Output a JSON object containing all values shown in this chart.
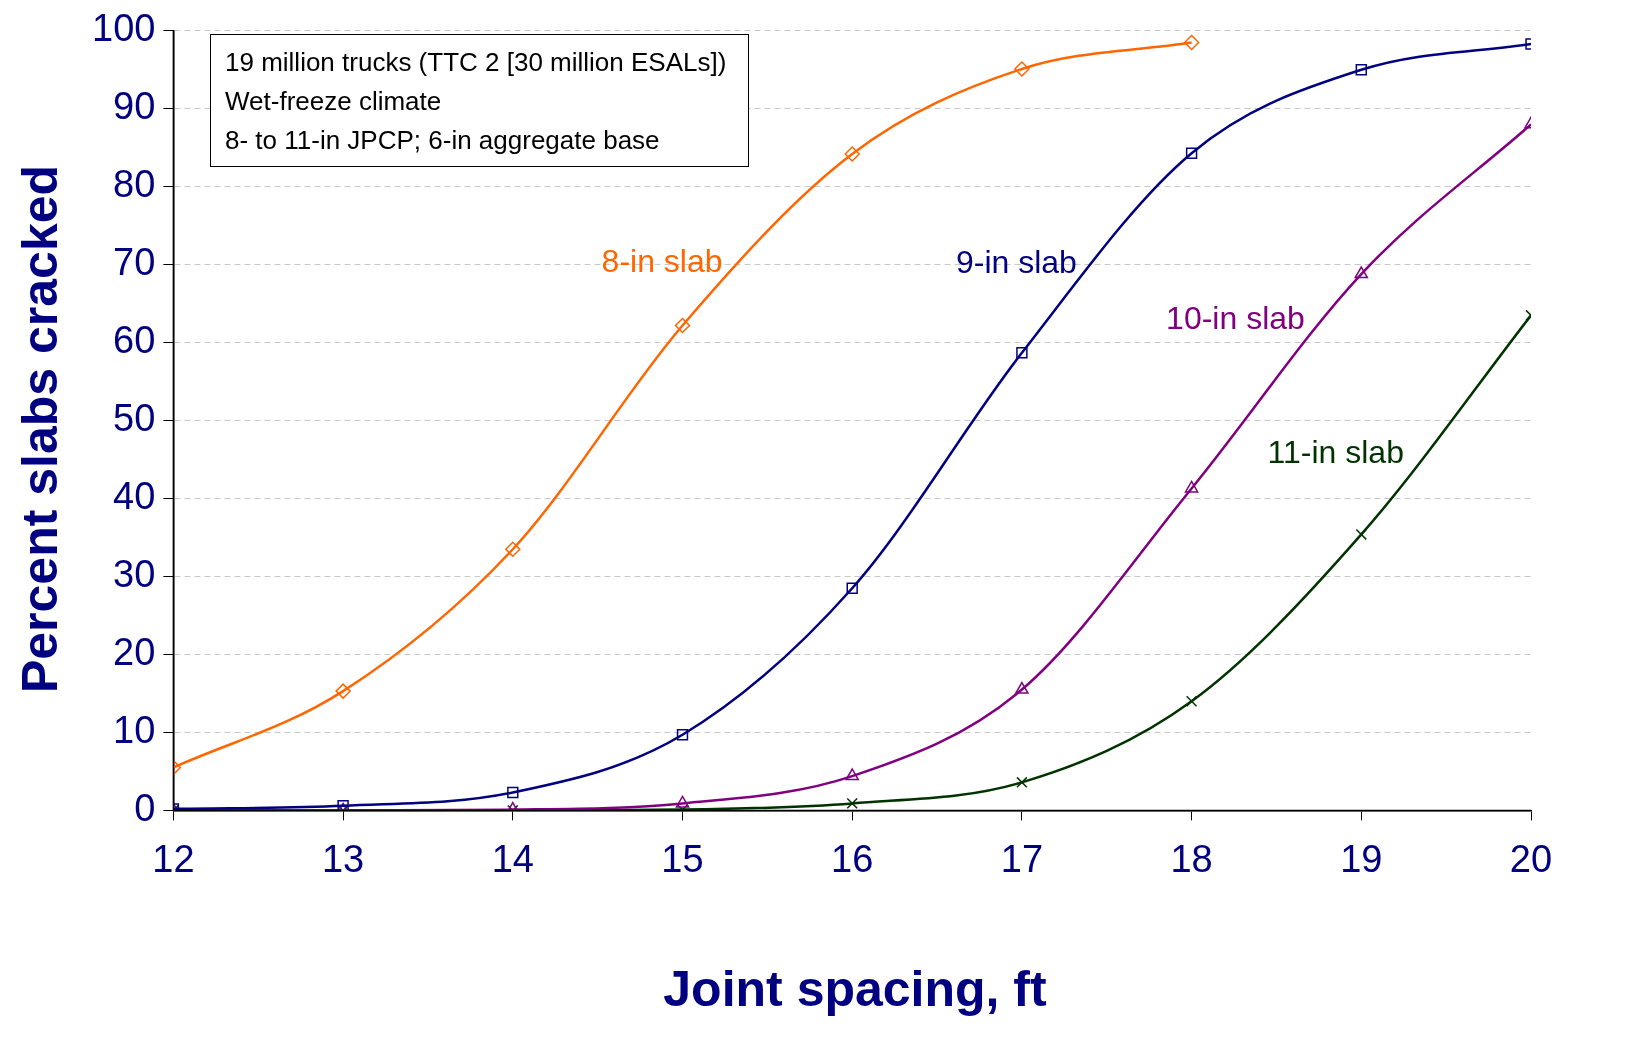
{
  "chart_data": {
    "type": "line",
    "xlabel": "Joint spacing, ft",
    "ylabel": "Percent slabs cracked",
    "x": [
      12,
      13,
      14,
      15,
      16,
      17,
      18,
      19,
      20
    ],
    "xlim": [
      12,
      20
    ],
    "xticks": [
      12,
      13,
      14,
      15,
      16,
      17,
      18,
      19,
      20
    ],
    "ylim": [
      0,
      100
    ],
    "yticks": [
      0,
      10,
      20,
      30,
      40,
      50,
      60,
      70,
      80,
      90,
      100
    ],
    "grid": "y",
    "legend": false,
    "series": [
      {
        "name": "8-in slab",
        "color": "#ff6600",
        "marker": "diamond",
        "values": [
          5.5,
          15.3,
          33.5,
          62.2,
          84.2,
          95.1,
          98.5,
          null,
          null
        ]
      },
      {
        "name": "9-in slab",
        "color": "#000080",
        "marker": "square",
        "values": [
          0.2,
          0.6,
          2.3,
          9.7,
          28.5,
          58.7,
          84.3,
          95,
          98.3
        ]
      },
      {
        "name": "10-in slab",
        "color": "#800080",
        "marker": "triangle",
        "values": [
          0,
          0,
          0.1,
          0.9,
          4.4,
          15.5,
          41.3,
          68.8,
          88
        ]
      },
      {
        "name": "11-in slab",
        "color": "#003300",
        "marker": "cross",
        "values": [
          0,
          0,
          0,
          0.1,
          0.9,
          3.6,
          14,
          35.4,
          63.5
        ]
      }
    ],
    "annotations": [
      "19 million trucks (TTC 2 [30 million ESALs])",
      "Wet-freeze climate",
      "8- to 11-in JPCP; 6-in aggregate base"
    ]
  }
}
